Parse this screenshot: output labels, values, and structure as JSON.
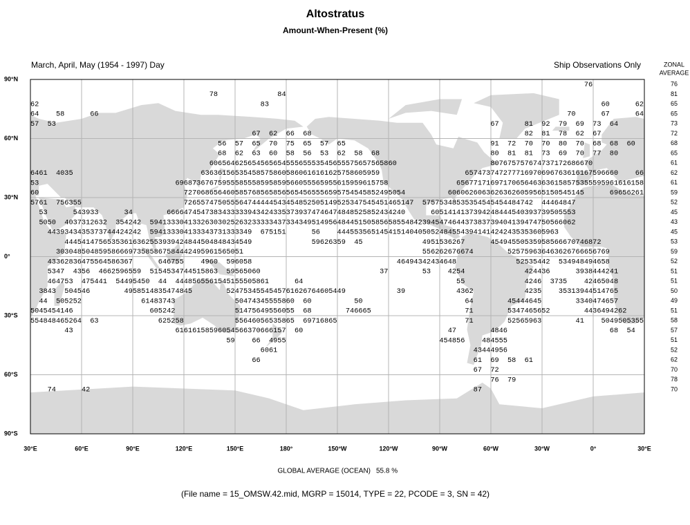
{
  "title": "Altostratus",
  "subtitle": "Amount-When-Present (%)",
  "season": "March, April, May (1954 - 1997) Day",
  "source": "Ship Observations Only",
  "map": {
    "lat_labels": [
      "90°N",
      "60°N",
      "30°N",
      "0°",
      "30°S",
      "60°S",
      "90°S"
    ],
    "lon_labels": [
      "30°E",
      "60°E",
      "90°E",
      "120°E",
      "150°E",
      "180°",
      "150°W",
      "120°W",
      "90°W",
      "60°W",
      "30°W",
      "0°",
      "30°E"
    ],
    "grid_rows": [
      "                                                                                                                                  76",
      "                                          78              84",
      "62                                                    83                                                                              60      62",
      "64    58      66                                                                                                              70      67      64",
      "57  53                                                                                                      67      81  92  79  69  73  64",
      "                                                    67  62  66  68                                                  82  81  78  62  67",
      "                                            56  57  65  70  75  65  57  65                                  91  72  70  70  80  70  68  68  60",
      "                                            68  62  63  60  58  56  53  62  58  68                          80  81  81  73  69  70  77  80",
      "                                          60656462565456565455565553545655575657565860                      807675757674737172686670",
      "6461  4035                              636361565354585758605860616161625758605959                    657473747277716970696763616167596660    66",
      "53                                69687367675955585558595859566055565955615959615758                65677171697170656463636158575355595961616158",
      "60                                  7270686564605857685658565654565556595754545852495054          60606260636263626059565150545145      69656261",
      "5761  756355                        726557475055564744444543454852505149525347545451465147  57575348535354545454484742  44464847",
      "  53      543933      34        66664745473834333339434243353739374746474848525852434240      6051414137394248444540393739505553",
      "  5050  4037312632  354242  5941333041332630302526323333343733434951495648445150585658554842394547464437383739404139474750566062",
      "    4439343435373744424242  594133304133343731333349  675151      56    4445535651454151404050524845543941414242435353605963",
      "        44454147565353616362553939424844504848434549              59626359  45              4951536267      45494550535958566670746872",
      "      30304850485958666973585867584442495961565051                                          556262676674        525759636463626766656769",
      "    43362836475564586367      646755    4960  596058                                  46494342434648              52535442  534948494658",
      "    5347  4356  4662596559  5154534744515863  59565060                            37        53    4254              424436      3938444241",
      "    464753  475441  54495450  44  4448565561545155505861      64                                    55              4246  3735    42465048",
      "  3843  504546        4958514835474845        5247534554545761626764605449            39            4362            4235    35313944514765",
      "  44  505252              61483743              50474345555860  60          50                        64        45444645        3340474657",
      "5045454146                  605242              51475649556055  68        746665                      71        5347465652        4436494262",
      "554848465264  63              625258            55646056535865  69716865                              71        52565963        41    5049505355",
      "        43                        61616158596054566370666157  60                                  47        4846                        68  54",
      "                                              59    66  4955                                    454856    484555",
      "                                                      6061                                              43444956",
      "                                                    66                                                  61  69  58  61",
      "                                                                                                        67  72",
      "                                                                                                            76  79",
      "    74      42                                                                                          87"
    ]
  },
  "zonal_average": {
    "header": [
      "ZONAL",
      "AVERAGE"
    ],
    "values": [
      76,
      81,
      65,
      65,
      73,
      72,
      68,
      65,
      61,
      62,
      61,
      59,
      52,
      45,
      43,
      45,
      53,
      59,
      52,
      51,
      51,
      50,
      49,
      51,
      58,
      57,
      51,
      52,
      62,
      70,
      78,
      70
    ]
  },
  "global_average": {
    "label": "GLOBAL AVERAGE (OCEAN)",
    "value": "55.8 %"
  },
  "footer": "(File name = 15_OMSW.42.mid, MGRP = 15014, TYPE = 22, PCODE = 3, SN = 42)"
}
